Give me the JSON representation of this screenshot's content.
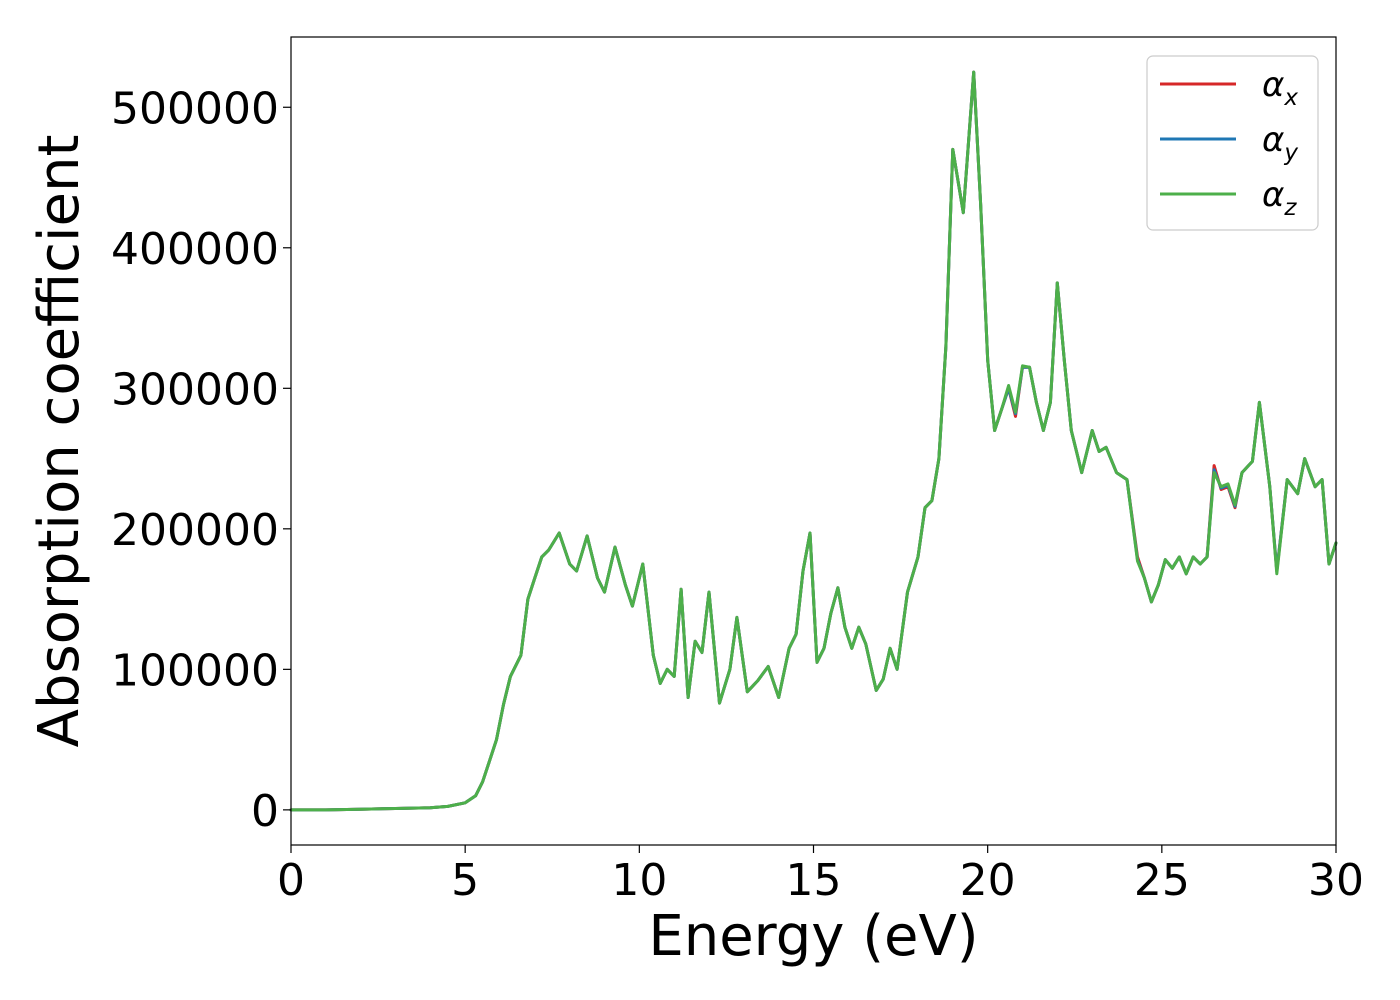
{
  "chart_data": {
    "type": "line",
    "xlabel": "Energy (eV)",
    "ylabel": "Absorption coefficient",
    "xlim": [
      0,
      30
    ],
    "ylim": [
      -25000,
      550000
    ],
    "xticks": [
      0,
      5,
      10,
      15,
      20,
      25,
      30
    ],
    "xtick_labels": [
      "0",
      "5",
      "10",
      "15",
      "20",
      "25",
      "30"
    ],
    "yticks": [
      0,
      100000,
      200000,
      300000,
      400000,
      500000
    ],
    "ytick_labels": [
      "0",
      "100000",
      "200000",
      "300000",
      "400000",
      "500000"
    ],
    "grid": false,
    "legend_position": "top-right",
    "x": [
      0,
      1,
      2,
      3,
      4,
      4.5,
      5,
      5.3,
      5.5,
      5.7,
      5.9,
      6.1,
      6.3,
      6.6,
      6.8,
      7.0,
      7.2,
      7.4,
      7.7,
      8.0,
      8.2,
      8.5,
      8.8,
      9.0,
      9.3,
      9.6,
      9.8,
      10.1,
      10.4,
      10.6,
      10.8,
      11.0,
      11.2,
      11.4,
      11.6,
      11.8,
      12.0,
      12.3,
      12.6,
      12.8,
      13.1,
      13.4,
      13.7,
      14.0,
      14.3,
      14.5,
      14.7,
      14.9,
      15.1,
      15.3,
      15.5,
      15.7,
      15.9,
      16.1,
      16.3,
      16.5,
      16.8,
      17.0,
      17.2,
      17.4,
      17.7,
      18.0,
      18.2,
      18.4,
      18.6,
      18.8,
      19.0,
      19.3,
      19.6,
      19.8,
      20.0,
      20.2,
      20.4,
      20.6,
      20.8,
      21.0,
      21.2,
      21.4,
      21.6,
      21.8,
      22.0,
      22.2,
      22.4,
      22.7,
      23.0,
      23.2,
      23.4,
      23.7,
      24.0,
      24.3,
      24.5,
      24.7,
      24.9,
      25.1,
      25.3,
      25.5,
      25.7,
      25.9,
      26.1,
      26.3,
      26.5,
      26.7,
      26.9,
      27.1,
      27.3,
      27.6,
      27.8,
      28.1,
      28.3,
      28.6,
      28.9,
      29.1,
      29.4,
      29.6,
      29.8,
      30.0
    ],
    "series": [
      {
        "name": "α_x",
        "color": "#d62728",
        "values": [
          0,
          0,
          500,
          1000,
          1500,
          2500,
          5000,
          10000,
          20000,
          35000,
          50000,
          75000,
          95000,
          110000,
          150000,
          165000,
          180000,
          185000,
          197000,
          175000,
          170000,
          195000,
          165000,
          155000,
          187000,
          160000,
          145000,
          175000,
          110000,
          90000,
          100000,
          95000,
          157000,
          80000,
          120000,
          112000,
          155000,
          76000,
          100000,
          137000,
          84000,
          92000,
          102000,
          80000,
          115000,
          125000,
          170000,
          197000,
          105000,
          115000,
          140000,
          158000,
          130000,
          115000,
          130000,
          118000,
          85000,
          93000,
          115000,
          100000,
          155000,
          180000,
          215000,
          220000,
          250000,
          330000,
          470000,
          425000,
          525000,
          430000,
          320000,
          270000,
          285000,
          300000,
          280000,
          315000,
          315000,
          290000,
          270000,
          290000,
          375000,
          320000,
          270000,
          240000,
          270000,
          255000,
          258000,
          240000,
          235000,
          180000,
          165000,
          148000,
          160000,
          178000,
          172000,
          180000,
          168000,
          180000,
          175000,
          180000,
          245000,
          228000,
          230000,
          215000,
          240000,
          248000,
          290000,
          230000,
          170000,
          235000,
          225000,
          250000,
          230000,
          235000,
          175000,
          190000
        ]
      },
      {
        "name": "α_y",
        "color": "#1f77b4",
        "values": [
          0,
          0,
          500,
          1000,
          1500,
          2500,
          5000,
          10000,
          20000,
          35000,
          50000,
          75000,
          95000,
          110000,
          150000,
          165000,
          180000,
          185000,
          197000,
          175000,
          170000,
          195000,
          165000,
          155000,
          187000,
          160000,
          145000,
          175000,
          110000,
          90000,
          100000,
          95000,
          157000,
          80000,
          120000,
          112000,
          155000,
          76000,
          100000,
          137000,
          84000,
          92000,
          102000,
          80000,
          115000,
          125000,
          170000,
          197000,
          105000,
          115000,
          140000,
          158000,
          130000,
          115000,
          130000,
          118000,
          85000,
          93000,
          115000,
          100000,
          155000,
          180000,
          215000,
          220000,
          250000,
          330000,
          470000,
          425000,
          525000,
          430000,
          320000,
          270000,
          285000,
          300000,
          282000,
          315000,
          315000,
          290000,
          270000,
          290000,
          375000,
          320000,
          270000,
          240000,
          270000,
          255000,
          258000,
          240000,
          235000,
          178000,
          165000,
          148000,
          160000,
          178000,
          172000,
          180000,
          168000,
          180000,
          175000,
          180000,
          242000,
          229000,
          231000,
          216000,
          240000,
          248000,
          290000,
          230000,
          170000,
          235000,
          225000,
          250000,
          230000,
          235000,
          175000,
          190000
        ]
      },
      {
        "name": "α_z",
        "color": "#4daf4a",
        "values": [
          0,
          0,
          500,
          1000,
          1500,
          2500,
          5000,
          10000,
          20000,
          35000,
          50000,
          75000,
          95000,
          110000,
          150000,
          165000,
          180000,
          185000,
          197000,
          175000,
          170000,
          195000,
          165000,
          155000,
          187000,
          160000,
          145000,
          175000,
          110000,
          90000,
          100000,
          95000,
          157000,
          80000,
          120000,
          112000,
          155000,
          76000,
          100000,
          137000,
          84000,
          92000,
          102000,
          80000,
          115000,
          125000,
          170000,
          197000,
          105000,
          115000,
          140000,
          158000,
          130000,
          115000,
          130000,
          118000,
          85000,
          93000,
          115000,
          100000,
          155000,
          180000,
          215000,
          220000,
          250000,
          330000,
          470000,
          425000,
          525000,
          430000,
          320000,
          270000,
          285000,
          302000,
          283000,
          316000,
          315000,
          290000,
          270000,
          290000,
          375000,
          320000,
          270000,
          240000,
          270000,
          255000,
          258000,
          240000,
          235000,
          177000,
          165000,
          148000,
          160000,
          178000,
          172000,
          180000,
          168000,
          180000,
          175000,
          180000,
          240000,
          230000,
          232000,
          217000,
          240000,
          248000,
          290000,
          230000,
          168000,
          235000,
          225000,
          250000,
          230000,
          235000,
          175000,
          190000
        ]
      }
    ]
  }
}
